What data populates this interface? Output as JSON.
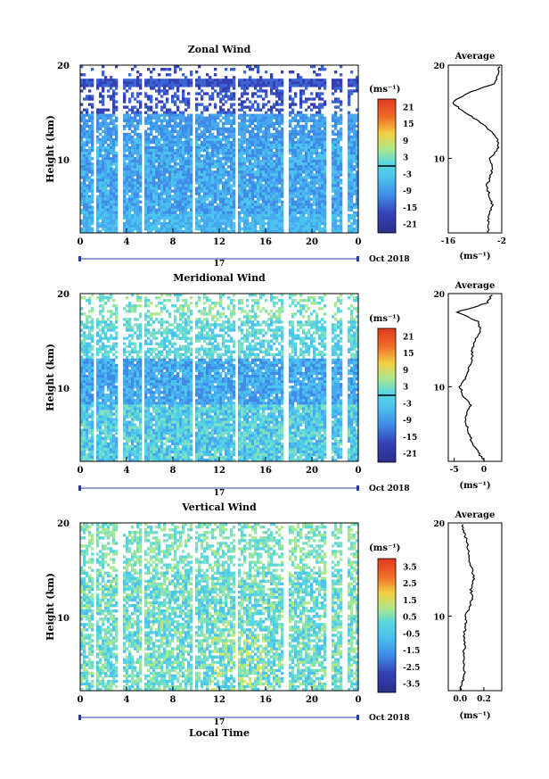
{
  "figure": {
    "xlabel": "Local Time",
    "date_label": "Oct 2018",
    "day_label": "17"
  },
  "palette": [
    "#2b2f8a",
    "#3540b5",
    "#3a63d6",
    "#3f8ce8",
    "#46a9ef",
    "#4cc3ee",
    "#55d6e0",
    "#7ee0c0",
    "#a8e890",
    "#d8e860",
    "#f2d040",
    "#f5a030",
    "#f07028",
    "#e03820"
  ],
  "chart_data": [
    {
      "type": "heatmap",
      "title": "Zonal Wind",
      "ylabel": "Height (km)",
      "xlim": [
        0,
        24
      ],
      "ylim": [
        2,
        20
      ],
      "x_ticks": [
        "0",
        "4",
        "8",
        "12",
        "16",
        "20",
        "0"
      ],
      "y_ticks": [
        "10",
        "20"
      ],
      "unit_label": "(ms⁻¹)",
      "colorbar_ticks": [
        "21",
        "15",
        "9",
        "3",
        "-3",
        "-9",
        "-15",
        "-21"
      ],
      "colorbar_range": [
        -24,
        24
      ],
      "colorbar_marker": 0,
      "average_title": "Average",
      "average_xlim": [
        -16,
        -2
      ],
      "average_xticks": [
        "-16",
        "-2"
      ],
      "average_unit": "(ms⁻¹)",
      "average_profile": {
        "height": [
          2,
          3,
          4,
          5,
          6,
          7,
          8,
          9,
          10,
          11,
          12,
          13,
          14,
          15,
          16,
          17,
          18,
          19,
          20
        ],
        "value": [
          -5.5,
          -5.6,
          -5.3,
          -4.5,
          -5.2,
          -6,
          -5,
          -4.4,
          -5.2,
          -3,
          -3,
          -5,
          -8,
          -12,
          -15,
          -11,
          -4,
          -3,
          -2.5
        ]
      }
    },
    {
      "type": "heatmap",
      "title": "Meridional Wind",
      "ylabel": "Height (km)",
      "xlim": [
        0,
        24
      ],
      "ylim": [
        2,
        20
      ],
      "x_ticks": [
        "0",
        "4",
        "8",
        "12",
        "16",
        "20",
        "0"
      ],
      "y_ticks": [
        "10",
        "20"
      ],
      "unit_label": "(ms⁻¹)",
      "colorbar_ticks": [
        "21",
        "15",
        "9",
        "3",
        "-3",
        "-9",
        "-15",
        "-21"
      ],
      "colorbar_range": [
        -24,
        24
      ],
      "colorbar_marker": 0,
      "average_title": "Average",
      "average_xlim": [
        -6,
        3
      ],
      "average_xticks": [
        "-5",
        "0"
      ],
      "average_unit": "(ms⁻¹)",
      "average_profile": {
        "height": [
          2,
          3,
          4,
          5,
          6,
          7,
          8,
          9,
          10,
          11,
          12,
          13,
          14,
          15,
          16,
          17,
          18,
          19,
          20
        ],
        "value": [
          0,
          -1,
          -2,
          -2.5,
          -3,
          -3,
          -2.2,
          -3.5,
          -4,
          -3,
          -2.5,
          -2,
          -2,
          -1.5,
          -0.5,
          -1,
          -4.5,
          0.5,
          1.5
        ]
      }
    },
    {
      "type": "heatmap",
      "title": "Vertical Wind",
      "ylabel": "Height (km)",
      "xlim": [
        0,
        24
      ],
      "ylim": [
        2,
        20
      ],
      "x_ticks": [
        "0",
        "4",
        "8",
        "12",
        "16",
        "20",
        "0"
      ],
      "y_ticks": [
        "10",
        "20"
      ],
      "unit_label": "(ms⁻¹)",
      "colorbar_ticks": [
        "3.5",
        "2.5",
        "1.5",
        "0.5",
        "-0.5",
        "-1.5",
        "-2.5",
        "-3.5"
      ],
      "colorbar_range": [
        -4,
        4
      ],
      "colorbar_marker": null,
      "average_title": "Average",
      "average_xlim": [
        -0.1,
        0.35
      ],
      "average_xticks": [
        "0.0",
        "0.2"
      ],
      "average_unit": "(ms⁻¹)",
      "average_profile": {
        "height": [
          2,
          3,
          4,
          5,
          6,
          7,
          8,
          9,
          10,
          11,
          12,
          13,
          14,
          15,
          16,
          17,
          18,
          19,
          20
        ],
        "value": [
          0,
          0.02,
          0.04,
          0.03,
          0.03,
          0.04,
          0.03,
          0.05,
          0.04,
          0.08,
          0.1,
          0.09,
          0.12,
          0.1,
          0.08,
          0.07,
          0.06,
          0.03,
          0.02
        ]
      }
    }
  ]
}
